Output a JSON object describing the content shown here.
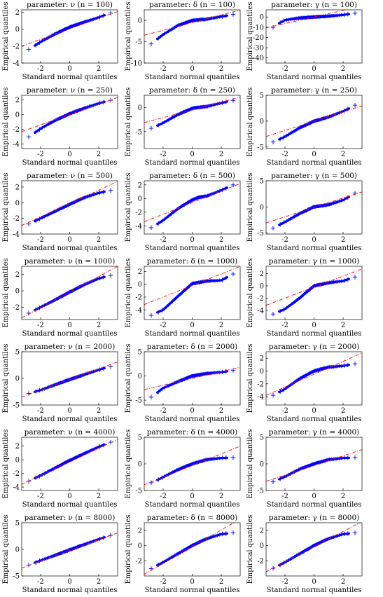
{
  "figure": {
    "xlabel": "Standard normal quantiles",
    "ylabel": "Empirical quantiles",
    "colors": {
      "points": "#0000ff",
      "reference_line": "#ff0000",
      "axes": "#000000"
    }
  },
  "chart_data": [
    {
      "type": "scatter",
      "subtype": "qq-plot",
      "title": "parameter: ν (n = 100)",
      "xlabel": "Standard normal quantiles",
      "ylabel": "Empirical quantiles",
      "xlim": [
        -3.3,
        3.3
      ],
      "ylim": [
        -4,
        2.3
      ],
      "xticks": [
        -2,
        0,
        2
      ],
      "yticks": [
        -4,
        -2,
        0,
        2
      ],
      "reference_line": {
        "slope": 0.62,
        "intercept": 0.05
      },
      "quantile_curve": {
        "x": [
          -3.3,
          -3,
          -2,
          -1,
          0,
          1,
          2,
          3,
          3.3
        ],
        "y": [
          -3.9,
          -2.6,
          -1.5,
          -0.55,
          0.25,
          0.85,
          1.4,
          2.05,
          2.2
        ]
      }
    },
    {
      "type": "scatter",
      "subtype": "qq-plot",
      "title": "parameter: δ (n = 100)",
      "xlabel": "Standard normal quantiles",
      "ylabel": "Empirical quantiles",
      "xlim": [
        -3.3,
        3.3
      ],
      "ylim": [
        -10,
        2.5
      ],
      "xticks": [
        -2,
        0,
        2
      ],
      "yticks": [
        -10,
        -5,
        0
      ],
      "reference_line": {
        "slope": 0.9,
        "intercept": -0.5
      },
      "quantile_curve": {
        "x": [
          -3.3,
          -3,
          -2,
          -1,
          0,
          1,
          2,
          3,
          3.3
        ],
        "y": [
          -7.7,
          -6,
          -3.3,
          -1.2,
          0,
          0.3,
          0.9,
          1.5,
          1.8
        ]
      }
    },
    {
      "type": "scatter",
      "subtype": "qq-plot",
      "title": "parameter: γ (n = 100)",
      "xlabel": "Standard normal quantiles",
      "ylabel": "Empirical quantiles",
      "xlim": [
        -3.3,
        3.3
      ],
      "ylim": [
        -45,
        7
      ],
      "xticks": [
        -2,
        0,
        2
      ],
      "yticks": [
        -40,
        -30,
        -20,
        -10,
        0
      ],
      "reference_line": {
        "slope": 3.2,
        "intercept": 0
      },
      "quantile_curve": {
        "x": [
          -3.3,
          -3,
          -2.5,
          -2,
          -1,
          0,
          1,
          2,
          3,
          3.3
        ],
        "y": [
          -45,
          -12,
          -7,
          -3,
          -1,
          0,
          0.8,
          2,
          4,
          5
        ]
      }
    },
    {
      "type": "scatter",
      "subtype": "qq-plot",
      "title": "parameter: ν (n = 250)",
      "xlabel": "Standard normal quantiles",
      "ylabel": "Empirical quantiles",
      "xlim": [
        -3.3,
        3.3
      ],
      "ylim": [
        -4.6,
        2.6
      ],
      "xticks": [
        -2,
        0,
        2
      ],
      "yticks": [
        -4,
        -2,
        0,
        2
      ],
      "reference_line": {
        "slope": 0.7,
        "intercept": 0
      },
      "quantile_curve": {
        "x": [
          -3.3,
          -3,
          -2,
          -1,
          0,
          1,
          2,
          3,
          3.3
        ],
        "y": [
          -4.4,
          -3.3,
          -1.9,
          -0.8,
          0.1,
          0.85,
          1.5,
          2.05,
          2.3
        ]
      }
    },
    {
      "type": "scatter",
      "subtype": "qq-plot",
      "title": "parameter: δ (n = 250)",
      "xlabel": "Standard normal quantiles",
      "ylabel": "Empirical quantiles",
      "xlim": [
        -3.3,
        3.3
      ],
      "ylim": [
        -8.5,
        2.5
      ],
      "xticks": [
        -2,
        0,
        2
      ],
      "yticks": [
        -5,
        0
      ],
      "reference_line": {
        "slope": 0.8,
        "intercept": -0.5
      },
      "quantile_curve": {
        "x": [
          -3.3,
          -3,
          -2,
          -1,
          0,
          1,
          2,
          3,
          3.3
        ],
        "y": [
          -7.8,
          -4.6,
          -3.2,
          -1.5,
          -0.2,
          0.2,
          0.9,
          1.6,
          1.9
        ]
      }
    },
    {
      "type": "scatter",
      "subtype": "qq-plot",
      "title": "parameter: γ (n = 250)",
      "xlabel": "Standard normal quantiles",
      "ylabel": "Empirical quantiles",
      "xlim": [
        -3.3,
        3.3
      ],
      "ylim": [
        -5.3,
        5
      ],
      "xticks": [
        -2,
        0,
        2
      ],
      "yticks": [
        -5,
        0,
        5
      ],
      "reference_line": {
        "slope": 0.9,
        "intercept": 0
      },
      "quantile_curve": {
        "x": [
          -3.3,
          -3,
          -2,
          -1,
          0,
          1,
          2,
          3,
          3.3
        ],
        "y": [
          -4.9,
          -4.3,
          -3,
          -1.3,
          0,
          0.8,
          1.9,
          3.3,
          3.8
        ]
      }
    },
    {
      "type": "scatter",
      "subtype": "qq-plot",
      "title": "parameter: ν (n = 500)",
      "xlabel": "Standard normal quantiles",
      "ylabel": "Empirical quantiles",
      "xlim": [
        -3.3,
        3.3
      ],
      "ylim": [
        -4,
        2.8
      ],
      "xticks": [
        -2,
        0,
        2
      ],
      "yticks": [
        -4,
        -2,
        0,
        2
      ],
      "reference_line": {
        "slope": 0.85,
        "intercept": -0.1
      },
      "quantile_curve": {
        "x": [
          -3.3,
          -3,
          -2,
          -1,
          0,
          1,
          2,
          3,
          3.3
        ],
        "y": [
          -3.3,
          -2.9,
          -2,
          -1.1,
          -0.2,
          0.65,
          1.25,
          1.65,
          1.75
        ]
      }
    },
    {
      "type": "scatter",
      "subtype": "qq-plot",
      "title": "parameter: δ (n = 500)",
      "xlabel": "Standard normal quantiles",
      "ylabel": "Empirical quantiles",
      "xlim": [
        -3.3,
        3.3
      ],
      "ylim": [
        -5.2,
        2.6
      ],
      "xticks": [
        -2,
        0,
        2
      ],
      "yticks": [
        -4,
        -2,
        0,
        2
      ],
      "reference_line": {
        "slope": 0.85,
        "intercept": -0.6
      },
      "quantile_curve": {
        "x": [
          -3.3,
          -3,
          -2,
          -1,
          0,
          0.5,
          1,
          2,
          3,
          3.3
        ],
        "y": [
          -4.9,
          -4.5,
          -3.2,
          -1.5,
          -0.2,
          0.2,
          0.35,
          1.2,
          2.2,
          2.3
        ]
      }
    },
    {
      "type": "scatter",
      "subtype": "qq-plot",
      "title": "parameter: γ (n = 500)",
      "xlabel": "Standard normal quantiles",
      "ylabel": "Empirical quantiles",
      "xlim": [
        -3.3,
        3.3
      ],
      "ylim": [
        -5.2,
        5
      ],
      "xticks": [
        -2,
        0,
        2
      ],
      "yticks": [
        -5,
        0,
        5
      ],
      "reference_line": {
        "slope": 0.9,
        "intercept": -0.1
      },
      "quantile_curve": {
        "x": [
          -3.3,
          -3,
          -2,
          -1,
          0,
          1,
          2,
          3,
          3.3
        ],
        "y": [
          -4.8,
          -4.3,
          -2.9,
          -1.3,
          0,
          0.4,
          1.3,
          2.9,
          3.3
        ]
      }
    },
    {
      "type": "scatter",
      "subtype": "qq-plot",
      "title": "parameter: ν (n = 1000)",
      "xlabel": "Standard normal quantiles",
      "ylabel": "Empirical quantiles",
      "xlim": [
        -3.3,
        3.3
      ],
      "ylim": [
        -3.5,
        3
      ],
      "xticks": [
        -2,
        0,
        2
      ],
      "yticks": [
        -2,
        0,
        2
      ],
      "reference_line": {
        "slope": 0.95,
        "intercept": -0.15
      },
      "quantile_curve": {
        "x": [
          -3.3,
          -3,
          -2,
          -1,
          0,
          1,
          2,
          3,
          3.3
        ],
        "y": [
          -3.2,
          -2.9,
          -2,
          -1.1,
          -0.15,
          0.75,
          1.5,
          2,
          2.1
        ]
      }
    },
    {
      "type": "scatter",
      "subtype": "qq-plot",
      "title": "parameter: δ (n = 1000)",
      "xlabel": "Standard normal quantiles",
      "ylabel": "Empirical quantiles",
      "xlim": [
        -3.3,
        3.3
      ],
      "ylim": [
        -5.5,
        2.8
      ],
      "xticks": [
        -2,
        0,
        2
      ],
      "yticks": [
        -4,
        -2,
        0,
        2
      ],
      "reference_line": {
        "slope": 0.9,
        "intercept": -0.2
      },
      "quantile_curve": {
        "x": [
          -3.3,
          -3,
          -2,
          -1,
          0,
          1,
          2,
          3,
          3.3
        ],
        "y": [
          -5.4,
          -5,
          -4,
          -1.9,
          0.1,
          0.5,
          0.6,
          1.8,
          2.5
        ]
      }
    },
    {
      "type": "scatter",
      "subtype": "qq-plot",
      "title": "parameter: γ (n = 1000)",
      "xlabel": "Standard normal quantiles",
      "ylabel": "Empirical quantiles",
      "xlim": [
        -3.3,
        3.3
      ],
      "ylim": [
        -5.5,
        3.2
      ],
      "xticks": [
        -2,
        0,
        2
      ],
      "yticks": [
        -4,
        -2,
        0,
        2
      ],
      "reference_line": {
        "slope": 0.9,
        "intercept": -0.2
      },
      "quantile_curve": {
        "x": [
          -3.3,
          -3,
          -2,
          -1,
          0,
          1,
          2,
          3,
          3.3
        ],
        "y": [
          -5.1,
          -4.8,
          -3.8,
          -2,
          0,
          0.5,
          0.8,
          1.6,
          2.8
        ]
      }
    },
    {
      "type": "scatter",
      "subtype": "qq-plot",
      "title": "parameter: ν (n = 2000)",
      "xlabel": "Standard normal quantiles",
      "ylabel": "Empirical quantiles",
      "xlim": [
        -3.3,
        3.3
      ],
      "ylim": [
        -5,
        5
      ],
      "xticks": [
        -2,
        0,
        2
      ],
      "yticks": [
        -5,
        0,
        5
      ],
      "reference_line": {
        "slope": 1.0,
        "intercept": -0.2
      },
      "quantile_curve": {
        "x": [
          -3.3,
          -3,
          -2,
          -1,
          0,
          1,
          2,
          3,
          3.3
        ],
        "y": [
          -4.1,
          -3,
          -2.2,
          -1.2,
          -0.2,
          0.7,
          1.6,
          2.4,
          2.7
        ]
      }
    },
    {
      "type": "scatter",
      "subtype": "qq-plot",
      "title": "parameter: δ (n = 2000)",
      "xlabel": "Standard normal quantiles",
      "ylabel": "Empirical quantiles",
      "xlim": [
        -3.3,
        3.3
      ],
      "ylim": [
        -6,
        5
      ],
      "xticks": [
        -2,
        0,
        2
      ],
      "yticks": [
        -5,
        0,
        5
      ],
      "reference_line": {
        "slope": 0.7,
        "intercept": -0.5
      },
      "quantile_curve": {
        "x": [
          -3.3,
          -3,
          -2,
          -1,
          0,
          1,
          2,
          3,
          3.3
        ],
        "y": [
          -5.8,
          -4.8,
          -2.5,
          -1.2,
          0,
          0.5,
          0.8,
          1.2,
          1.4
        ]
      }
    },
    {
      "type": "scatter",
      "subtype": "qq-plot",
      "title": "parameter: γ (n = 2000)",
      "xlabel": "Standard normal quantiles",
      "ylabel": "Empirical quantiles",
      "xlim": [
        -3.3,
        3.3
      ],
      "ylim": [
        -5.3,
        3
      ],
      "xticks": [
        -2,
        0,
        2
      ],
      "yticks": [
        -4,
        -2,
        0,
        2
      ],
      "reference_line": {
        "slope": 1.0,
        "intercept": -0.5
      },
      "quantile_curve": {
        "x": [
          -3.3,
          -3,
          -2,
          -1,
          0,
          1,
          2,
          3,
          3.3
        ],
        "y": [
          -5.1,
          -4,
          -2.8,
          -1.2,
          0,
          0.6,
          0.8,
          1.2,
          1.4
        ]
      }
    },
    {
      "type": "scatter",
      "subtype": "qq-plot",
      "title": "parameter: ν (n = 4000)",
      "xlabel": "Standard normal quantiles",
      "ylabel": "Empirical quantiles",
      "xlim": [
        -3.3,
        3.3
      ],
      "ylim": [
        -4.5,
        3.3
      ],
      "xticks": [
        -2,
        0,
        2
      ],
      "yticks": [
        -4,
        -2,
        0,
        2
      ],
      "reference_line": {
        "slope": 1.0,
        "intercept": -0.3
      },
      "quantile_curve": {
        "x": [
          -3.3,
          -3,
          -2,
          -1,
          0,
          1,
          2,
          3,
          3.3
        ],
        "y": [
          -3.9,
          -3.3,
          -2.3,
          -1.2,
          -0.1,
          0.9,
          1.9,
          2.7,
          3
        ]
      }
    },
    {
      "type": "scatter",
      "subtype": "qq-plot",
      "title": "parameter: δ (n = 4000)",
      "xlabel": "Standard normal quantiles",
      "ylabel": "Empirical quantiles",
      "xlim": [
        -3.3,
        3.3
      ],
      "ylim": [
        -5,
        5
      ],
      "xticks": [
        -2,
        0,
        2
      ],
      "yticks": [
        -5,
        0,
        5
      ],
      "reference_line": {
        "slope": 1.1,
        "intercept": -0.3
      },
      "quantile_curve": {
        "x": [
          -3.3,
          -3,
          -2,
          -1,
          0,
          1,
          2,
          3,
          3.3
        ],
        "y": [
          -4.6,
          -3.8,
          -2.5,
          -1.1,
          0,
          0.8,
          1.1,
          1.2,
          1.2
        ]
      }
    },
    {
      "type": "scatter",
      "subtype": "qq-plot",
      "title": "parameter: γ (n = 4000)",
      "xlabel": "Standard normal quantiles",
      "ylabel": "Empirical quantiles",
      "xlim": [
        -3.3,
        3.3
      ],
      "ylim": [
        -5,
        5
      ],
      "xticks": [
        -2,
        0,
        2
      ],
      "yticks": [
        -5,
        0,
        5
      ],
      "reference_line": {
        "slope": 0.9,
        "intercept": -0.3
      },
      "quantile_curve": {
        "x": [
          -3.3,
          -3,
          -2,
          -1,
          0,
          1,
          2,
          3,
          3.3
        ],
        "y": [
          -4.3,
          -3.6,
          -2.4,
          -1,
          0,
          0.8,
          1.1,
          1.2,
          1.2
        ]
      }
    },
    {
      "type": "scatter",
      "subtype": "qq-plot",
      "title": "parameter: ν (n = 8000)",
      "xlabel": "Standard normal quantiles",
      "ylabel": "Empirical quantiles",
      "xlim": [
        -3.3,
        3.3
      ],
      "ylim": [
        -5,
        5
      ],
      "xticks": [
        -2,
        0,
        2
      ],
      "yticks": [
        -5,
        0,
        5
      ],
      "reference_line": {
        "slope": 1.0,
        "intercept": -0.2
      },
      "quantile_curve": {
        "x": [
          -3.3,
          -3,
          -2,
          -1,
          0,
          1,
          2,
          3,
          3.3
        ],
        "y": [
          -3.7,
          -3.1,
          -2.1,
          -1.1,
          -0.1,
          0.9,
          1.9,
          2.8,
          3.1
        ]
      }
    },
    {
      "type": "scatter",
      "subtype": "qq-plot",
      "title": "parameter: δ (n = 8000)",
      "xlabel": "Standard normal quantiles",
      "ylabel": "Empirical quantiles",
      "xlim": [
        -3.3,
        3.3
      ],
      "ylim": [
        -4,
        3
      ],
      "xticks": [
        -2,
        0,
        2
      ],
      "yticks": [
        -2,
        0,
        2
      ],
      "reference_line": {
        "slope": 1.1,
        "intercept": -0.15
      },
      "quantile_curve": {
        "x": [
          -3.3,
          -3,
          -2,
          -1,
          0,
          1,
          2,
          3,
          3.3
        ],
        "y": [
          -3.6,
          -3.2,
          -2.2,
          -1.1,
          0,
          0.9,
          1.5,
          1.7,
          1.8
        ]
      }
    },
    {
      "type": "scatter",
      "subtype": "qq-plot",
      "title": "parameter: γ (n = 8000)",
      "xlabel": "Standard normal quantiles",
      "ylabel": "Empirical quantiles",
      "xlim": [
        -3.3,
        3.3
      ],
      "ylim": [
        -4,
        3
      ],
      "xticks": [
        -2,
        0,
        2
      ],
      "yticks": [
        -2,
        0,
        2
      ],
      "reference_line": {
        "slope": 1.0,
        "intercept": -0.15
      },
      "quantile_curve": {
        "x": [
          -3.3,
          -3,
          -2,
          -1,
          0,
          1,
          2,
          3,
          3.3
        ],
        "y": [
          -3.6,
          -3.2,
          -2.2,
          -1.1,
          0,
          0.9,
          1.5,
          1.7,
          1.8
        ]
      }
    }
  ]
}
